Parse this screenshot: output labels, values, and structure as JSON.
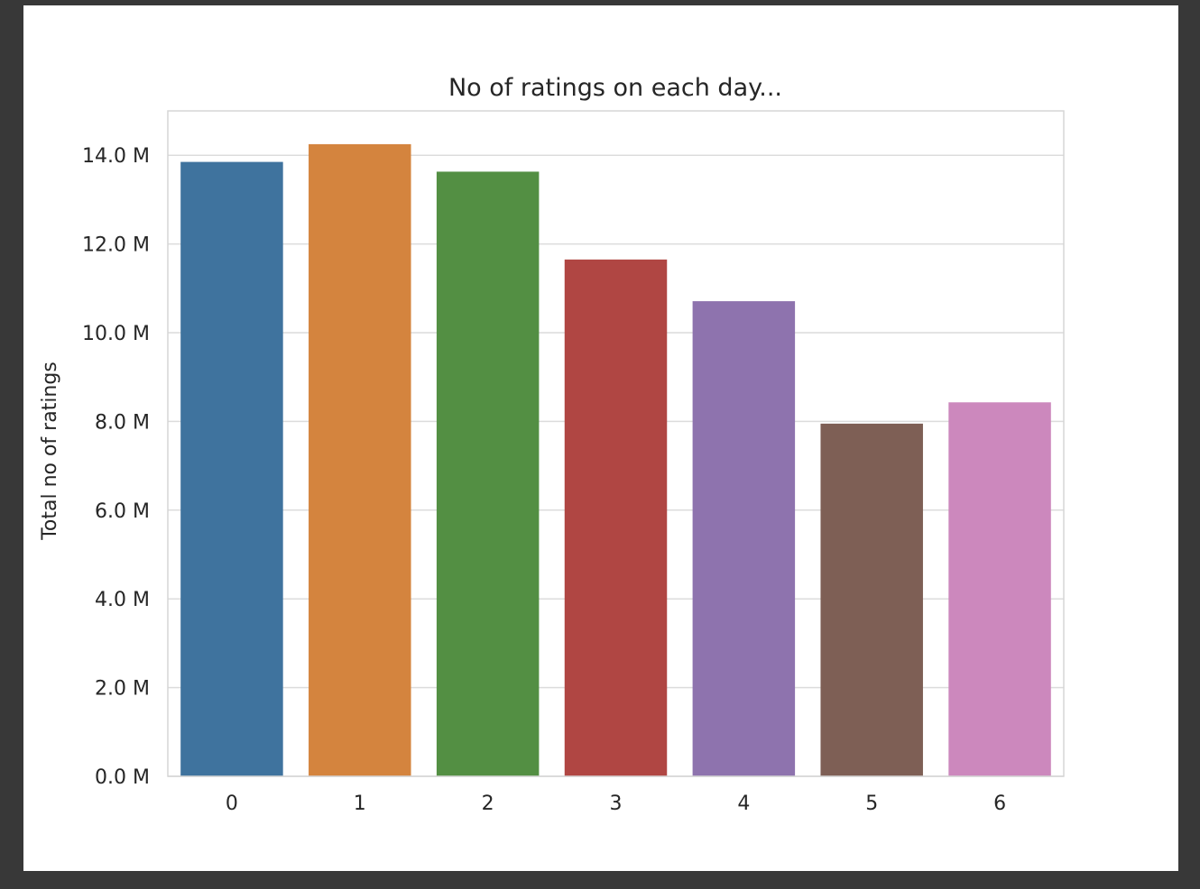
{
  "chart_data": {
    "type": "bar",
    "title": "No of ratings on each day...",
    "xlabel": "",
    "ylabel": "Total no of ratings",
    "categories": [
      "0",
      "1",
      "2",
      "3",
      "4",
      "5",
      "6"
    ],
    "values": [
      13.85,
      14.25,
      13.63,
      11.65,
      10.71,
      7.95,
      8.43
    ],
    "value_unit": "M",
    "ylim": [
      0,
      15.0
    ],
    "yticks": [
      0,
      2,
      4,
      6,
      8,
      10,
      12,
      14
    ],
    "ytick_labels": [
      "0.0 M",
      "2.0 M",
      "4.0 M",
      "6.0 M",
      "8.0 M",
      "10.0 M",
      "12.0 M",
      "14.0 M"
    ],
    "grid": true,
    "colors": [
      "#3f739e",
      "#d4843e",
      "#538f43",
      "#b04643",
      "#8e73ae",
      "#7e5f55",
      "#cc88bd"
    ],
    "grid_color": "#dcdcdc",
    "frame_color": "#d5d5d5"
  }
}
